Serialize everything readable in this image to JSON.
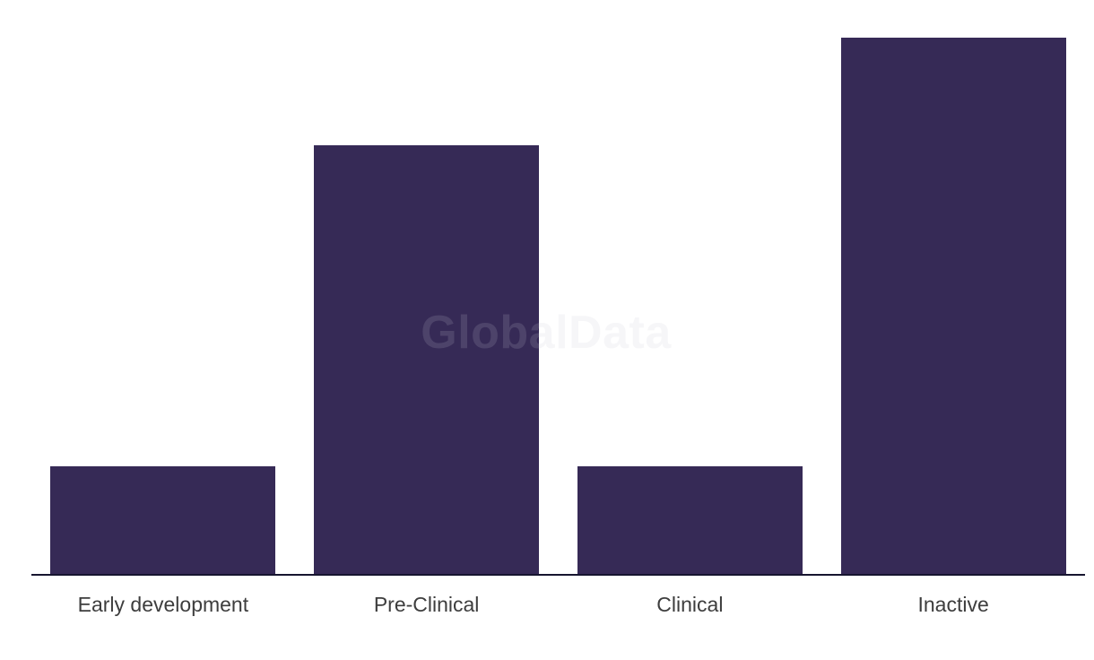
{
  "colors": {
    "background": "#ffffff",
    "bar": "#362a56",
    "axis": "#171530",
    "label": "#3d3d3d",
    "watermark": "rgba(198,198,210,0.16)"
  },
  "watermark": {
    "text": "GlobalData"
  },
  "chart_data": {
    "type": "bar",
    "title": "",
    "xlabel": "",
    "ylabel": "",
    "categories": [
      "Early development",
      "Pre-Clinical",
      "Clinical",
      "Inactive"
    ],
    "values": [
      2,
      8,
      2,
      10
    ],
    "ylim": [
      0,
      10
    ],
    "grid": false,
    "legend": false,
    "y_axis_visible": false,
    "x_axis_visible": true,
    "bar_color": "#362a56",
    "watermark": "GlobalData"
  }
}
